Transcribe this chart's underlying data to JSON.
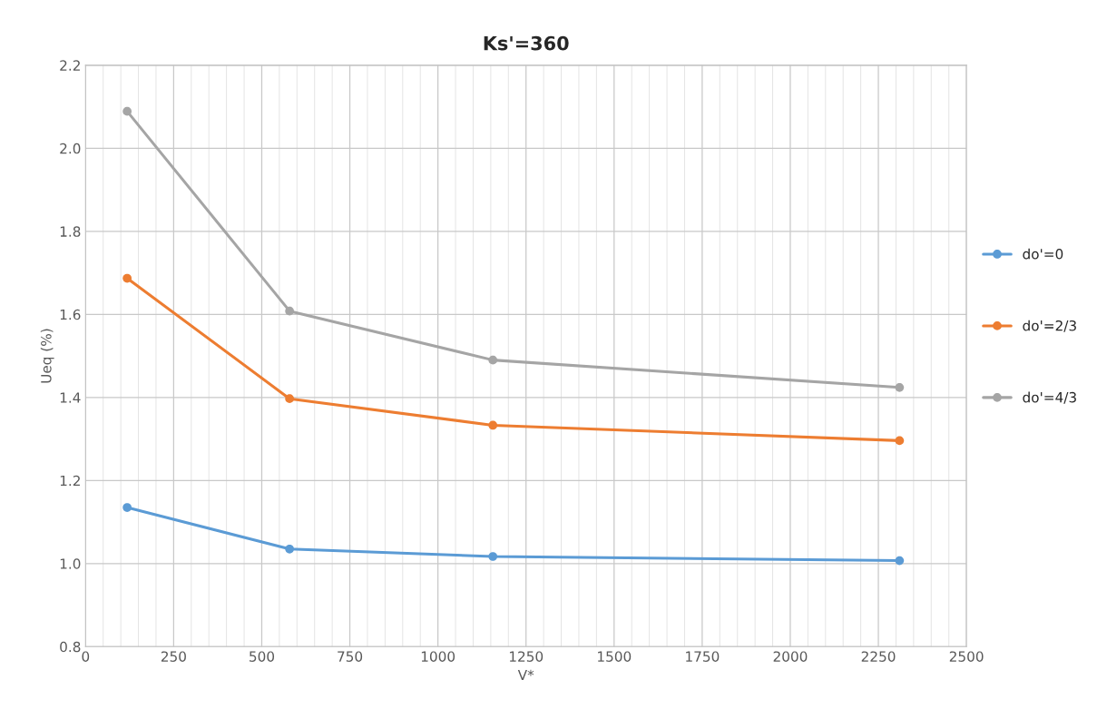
{
  "chart_data": {
    "type": "line",
    "title": "Ks'=360",
    "xlabel": "V*",
    "ylabel": "Ueq (%)",
    "x": [
      118,
      579,
      1156,
      2310
    ],
    "series": [
      {
        "name": "do'=0",
        "color": "#5b9bd5",
        "values": [
          1.135,
          1.035,
          1.017,
          1.007
        ]
      },
      {
        "name": "do'=2/3",
        "color": "#ed7d31",
        "values": [
          1.687,
          1.397,
          1.333,
          1.296
        ]
      },
      {
        "name": "do'=4/3",
        "color": "#a5a5a5",
        "values": [
          2.089,
          1.608,
          1.49,
          1.424
        ]
      }
    ],
    "xlim": [
      0,
      2500
    ],
    "xticks": [
      0,
      250,
      500,
      750,
      1000,
      1250,
      1500,
      1750,
      2000,
      2250,
      2500
    ],
    "ylim": [
      0.8,
      2.2
    ],
    "yticks": [
      {
        "value": 0.8,
        "label": "0.8"
      },
      {
        "value": 1.0,
        "label": "1.0"
      },
      {
        "value": 1.2,
        "label": "1.2"
      },
      {
        "value": 1.4,
        "label": "1.4"
      },
      {
        "value": 1.6,
        "label": "1.6"
      },
      {
        "value": 1.8,
        "label": "1.8"
      },
      {
        "value": 2.0,
        "label": "2.0"
      },
      {
        "value": 2.2,
        "label": "2.2"
      }
    ],
    "grid": true,
    "legend": "right",
    "marker": "circle",
    "line_style": "solid"
  }
}
